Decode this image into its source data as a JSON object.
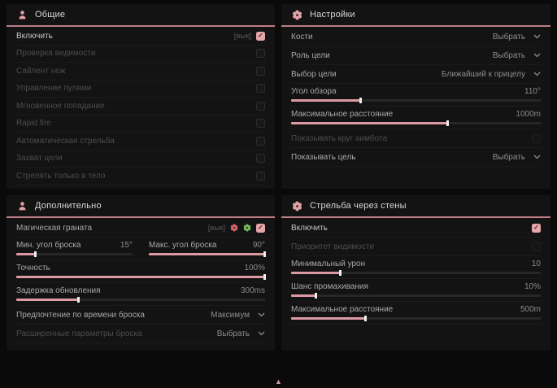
{
  "general": {
    "title": "Общие",
    "rows": [
      {
        "label": "Включить",
        "keybind": "[вык]",
        "checked": true
      },
      {
        "label": "Проверка видимости",
        "checked": false
      },
      {
        "label": "Сайлент нож",
        "checked": false
      },
      {
        "label": "Управление пулями",
        "checked": false
      },
      {
        "label": "Мгновенное попадание",
        "checked": false
      },
      {
        "label": "Rapid fire",
        "checked": false
      },
      {
        "label": "Автоматическая стрельба",
        "checked": false
      },
      {
        "label": "Захват цели",
        "checked": false
      },
      {
        "label": "Стрелять только в тело",
        "checked": false
      }
    ]
  },
  "settings": {
    "title": "Настройки",
    "rows": {
      "bones": {
        "label": "Кости",
        "value": "Выбрать"
      },
      "target_role": {
        "label": "Роль цели",
        "value": "Выбрать"
      },
      "target_select": {
        "label": "Выбор цели",
        "value": "Ближайший к прицелу"
      },
      "fov": {
        "label": "Угол обзора",
        "value": "110°",
        "fill": 28
      },
      "max_distance": {
        "label": "Максимальное расстояние",
        "value": "1000m",
        "fill": 63
      },
      "show_circle": {
        "label": "Показывать круг аимбота",
        "checked": false
      },
      "show_target": {
        "label": "Показывать цель",
        "value": "Выбрать"
      }
    }
  },
  "additional": {
    "title": "Дополнительно",
    "rows": {
      "magic_grenade": {
        "label": "Магическая граната",
        "keybind": "[вык]",
        "checked": true
      },
      "min_throw": {
        "label": "Мин. угол броска",
        "value": "15°",
        "fill": 17
      },
      "max_throw": {
        "label": "Макс. угол броска",
        "value": "90°",
        "fill": 100
      },
      "accuracy": {
        "label": "Точность",
        "value": "100%",
        "fill": 100
      },
      "update_delay": {
        "label": "Задержка обновления",
        "value": "300ms",
        "fill": 25
      },
      "throw_time": {
        "label": "Предпочтение по времени броска",
        "value": "Максимум"
      },
      "advanced": {
        "label": "Расширенные параметры броска",
        "value": "Выбрать"
      }
    }
  },
  "wallshot": {
    "title": "Стрельба через стены",
    "rows": {
      "enable": {
        "label": "Включить",
        "checked": true
      },
      "visibility_priority": {
        "label": "Приоритет видимости",
        "checked": false
      },
      "min_damage": {
        "label": "Минимальный урон",
        "value": "10",
        "fill": 20
      },
      "miss_chance": {
        "label": "Шанс промахивания",
        "value": "10%",
        "fill": 10
      },
      "max_distance": {
        "label": "Максимальное расстояние",
        "value": "500m",
        "fill": 30
      }
    }
  },
  "footer": {
    "scroll_indicator": "▲"
  },
  "colors": {
    "accent": "#dc9ba2",
    "header_line": "#bf7d86",
    "checkbox": "#e7a6ab"
  }
}
